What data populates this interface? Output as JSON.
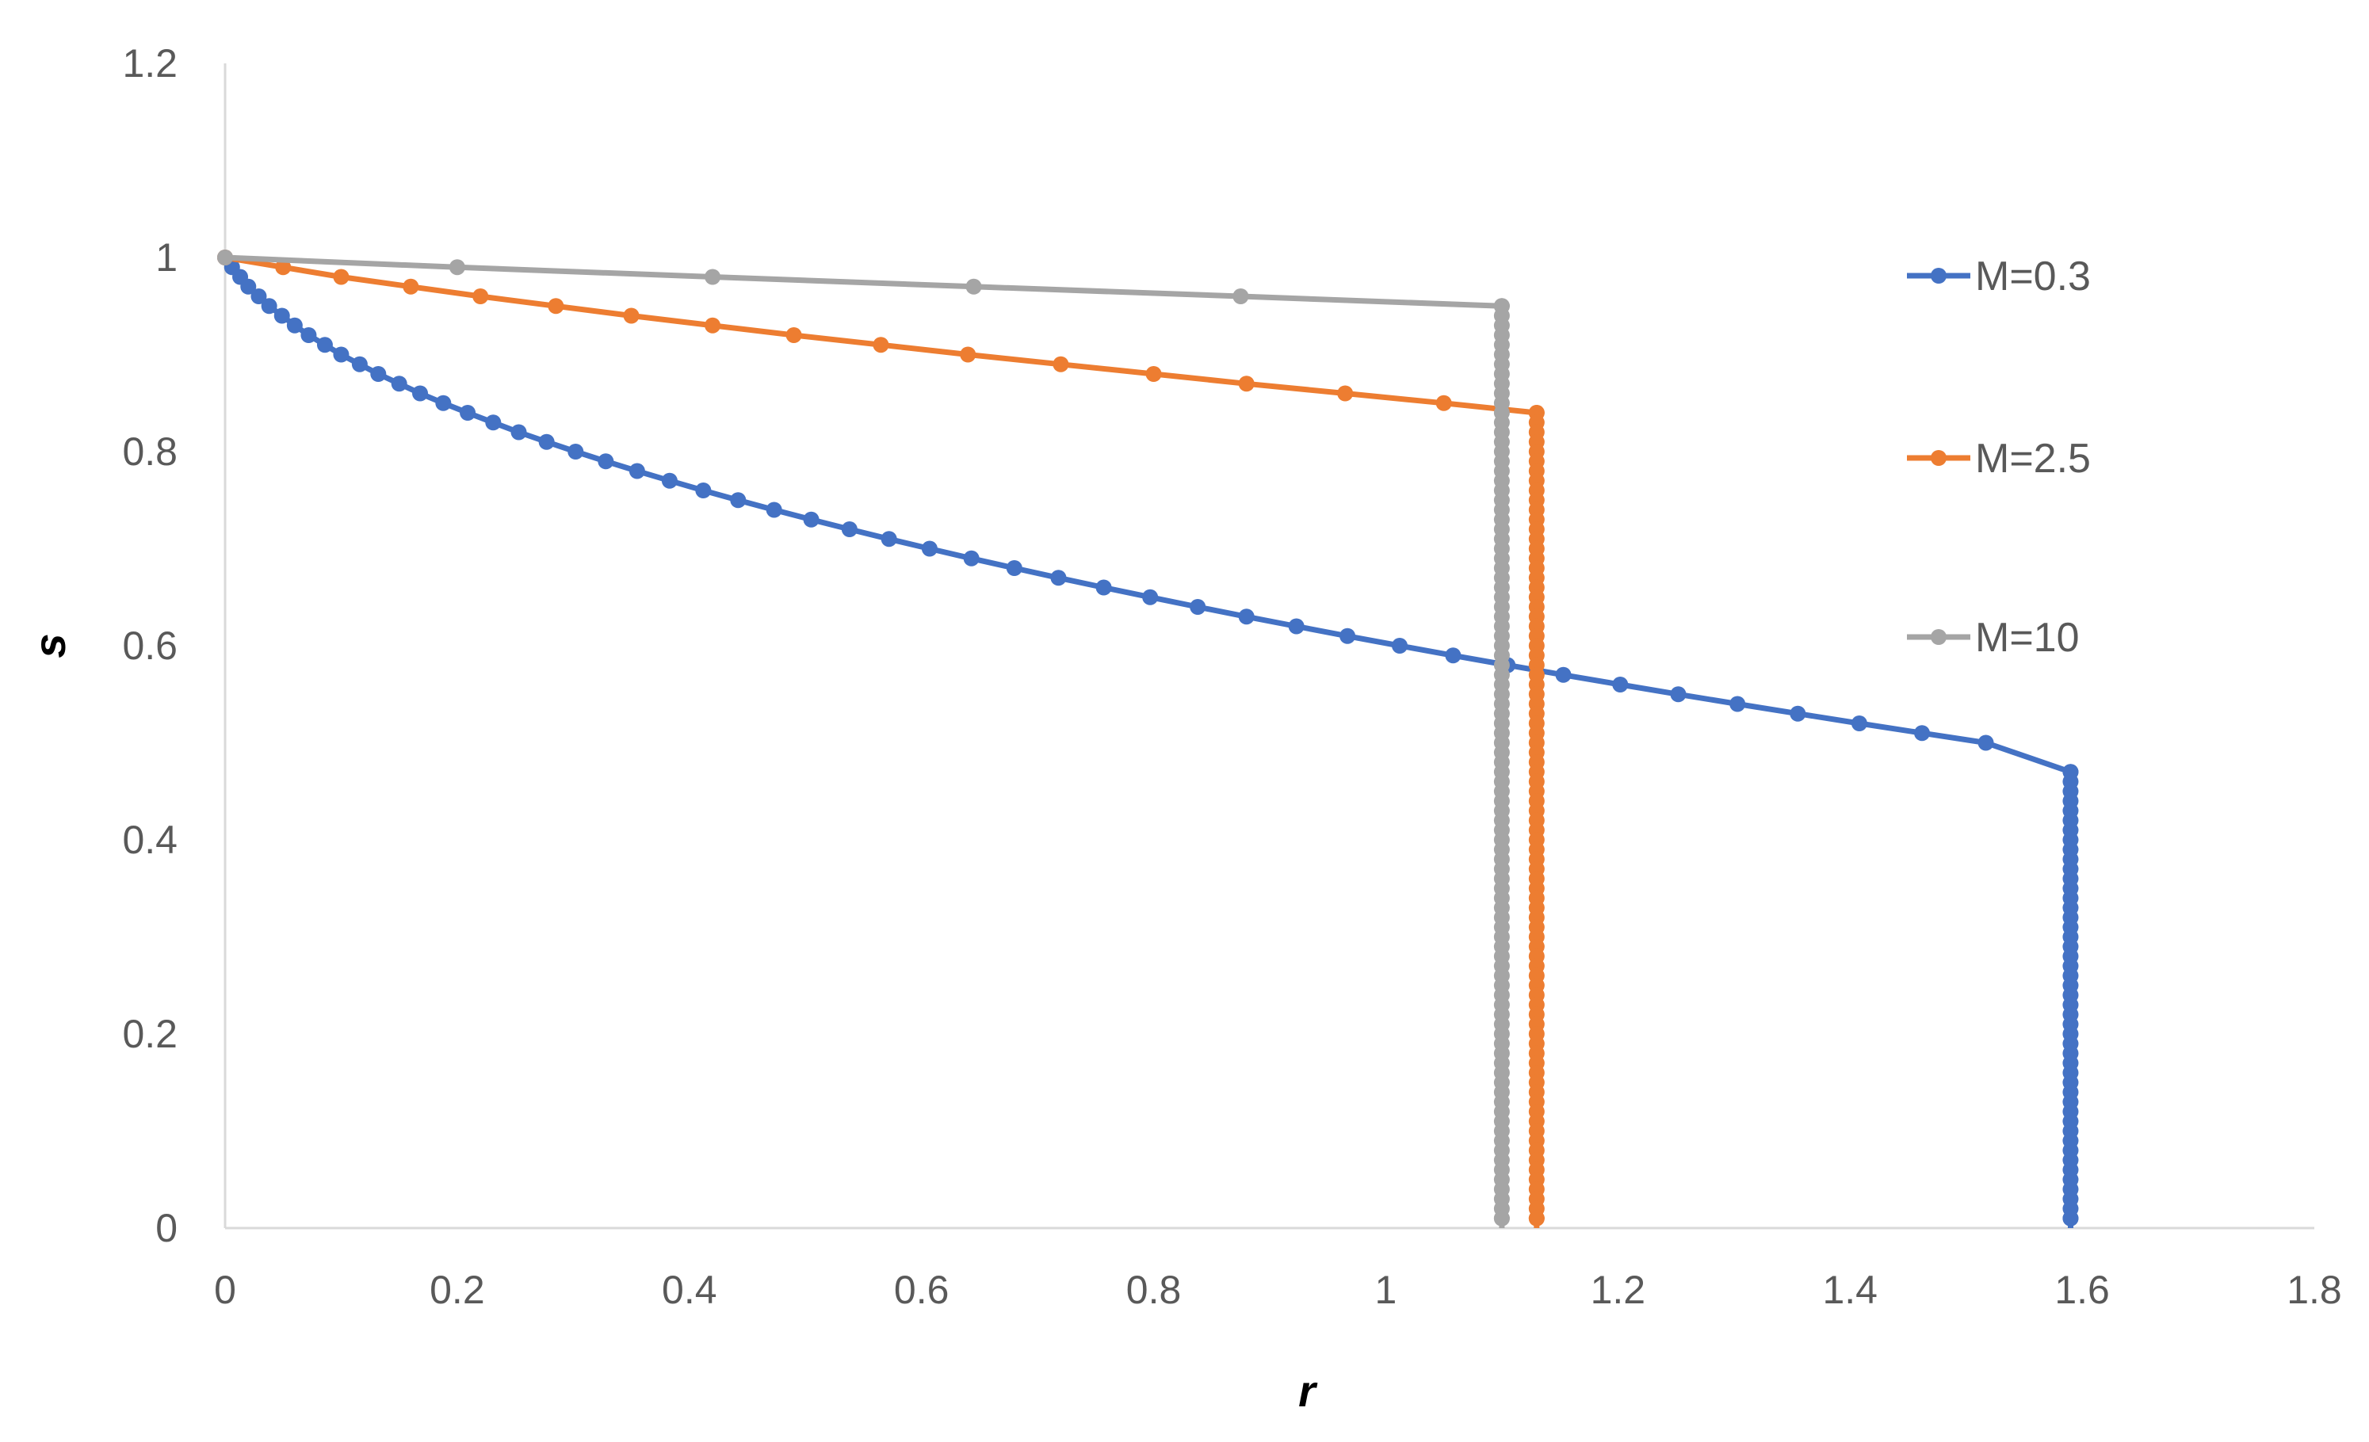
{
  "chart_data": {
    "type": "line",
    "title": "",
    "xlabel": "r",
    "ylabel": "s",
    "xlim": [
      0,
      1.8
    ],
    "ylim": [
      0,
      1.2
    ],
    "xticks": [
      "0",
      "0.2",
      "0.4",
      "0.6",
      "0.8",
      "1",
      "1.2",
      "1.4",
      "1.6",
      "1.8"
    ],
    "yticks": [
      "0",
      "0.2",
      "0.4",
      "0.6",
      "0.8",
      "1",
      "1.2"
    ],
    "x_tick_values": [
      0,
      0.2,
      0.4,
      0.6,
      0.8,
      1.0,
      1.2,
      1.4,
      1.6,
      1.8
    ],
    "y_tick_values": [
      0,
      0.2,
      0.4,
      0.6,
      0.8,
      1.0,
      1.2
    ],
    "grid": false,
    "legend_position": "right",
    "series": [
      {
        "name": "M=0.3",
        "color": "#4472C4",
        "x": [
          0,
          0.006,
          0.013,
          0.02,
          0.029,
          0.038,
          0.049,
          0.06,
          0.072,
          0.086,
          0.1,
          0.116,
          0.132,
          0.15,
          0.168,
          0.188,
          0.209,
          0.231,
          0.253,
          0.277,
          0.302,
          0.328,
          0.355,
          0.383,
          0.412,
          0.442,
          0.473,
          0.505,
          0.538,
          0.572,
          0.607,
          0.643,
          0.68,
          0.718,
          0.757,
          0.797,
          0.838,
          0.88,
          0.923,
          0.967,
          1.012,
          1.058,
          1.105,
          1.153,
          1.202,
          1.252,
          1.303,
          1.355,
          1.408,
          1.462,
          1.517,
          1.59,
          1.59
        ],
        "y": [
          1.0,
          0.99,
          0.98,
          0.97,
          0.96,
          0.95,
          0.94,
          0.93,
          0.92,
          0.91,
          0.9,
          0.89,
          0.88,
          0.87,
          0.86,
          0.85,
          0.84,
          0.83,
          0.82,
          0.81,
          0.8,
          0.79,
          0.78,
          0.77,
          0.76,
          0.75,
          0.74,
          0.73,
          0.72,
          0.71,
          0.7,
          0.69,
          0.68,
          0.67,
          0.66,
          0.65,
          0.64,
          0.63,
          0.62,
          0.61,
          0.6,
          0.59,
          0.58,
          0.57,
          0.56,
          0.55,
          0.54,
          0.53,
          0.52,
          0.51,
          0.5,
          0.47,
          0.0
        ]
      },
      {
        "name": "M=2.5",
        "color": "#ED7D31",
        "x": [
          0,
          0.05,
          0.1,
          0.16,
          0.22,
          0.285,
          0.35,
          0.42,
          0.49,
          0.565,
          0.64,
          0.72,
          0.8,
          0.88,
          0.965,
          1.05,
          1.13,
          1.13
        ],
        "y": [
          1.0,
          0.99,
          0.98,
          0.97,
          0.96,
          0.95,
          0.94,
          0.93,
          0.92,
          0.91,
          0.9,
          0.89,
          0.88,
          0.87,
          0.86,
          0.85,
          0.84,
          0.0
        ]
      },
      {
        "name": "M=10",
        "color": "#A5A5A5",
        "x": [
          0,
          0.2,
          0.42,
          0.645,
          0.875,
          1.1,
          1.1
        ],
        "y": [
          1.0,
          0.99,
          0.98,
          0.97,
          0.96,
          0.95,
          0.0
        ]
      }
    ]
  }
}
